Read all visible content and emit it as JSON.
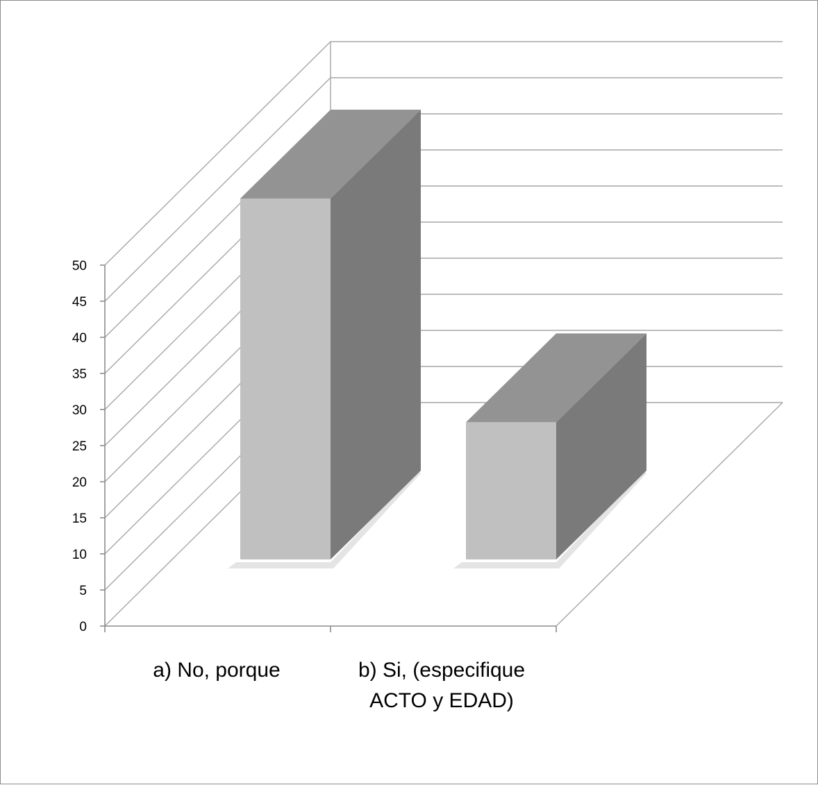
{
  "chart_data": {
    "type": "bar",
    "style": "3d-column",
    "categories": [
      "a) No, porque",
      "b) Si, (especifique ACTO y EDAD)"
    ],
    "category_lines": [
      [
        "a) No, porque"
      ],
      [
        "b) Si, (especifique",
        "ACTO y EDAD)"
      ]
    ],
    "values": [
      50,
      19
    ],
    "ylim": [
      0,
      50
    ],
    "yticks": [
      "0",
      "5",
      "10",
      "15",
      "20",
      "25",
      "30",
      "35",
      "40",
      "45",
      "50"
    ],
    "grid": true,
    "legend": "none",
    "title": "",
    "xlabel": "",
    "ylabel": "",
    "colors": {
      "front": "#c0c0c0",
      "side": "#7a7a7a",
      "top": "#939393",
      "grid": "#a6a6a6"
    }
  }
}
